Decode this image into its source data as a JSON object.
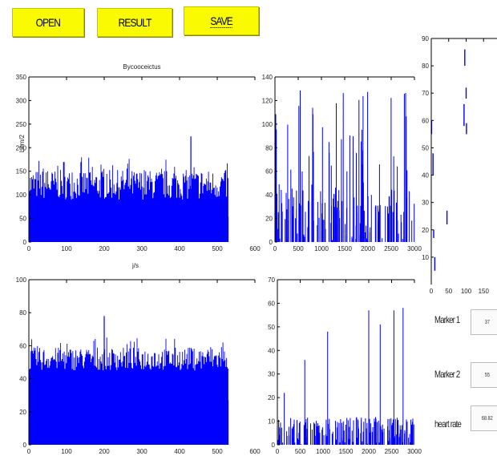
{
  "toolbar": {
    "open_label": "OPEN",
    "result_label": "RESULT",
    "save_label": "SAVE"
  },
  "fields": [
    {
      "label": "Marker 1",
      "value": "37"
    },
    {
      "label": "Marker 2",
      "value": "55"
    },
    {
      "label": "heart rate",
      "value": "68.82"
    }
  ],
  "colors": {
    "series": "#0000ff",
    "button": "#fafa00",
    "axis": "#000000"
  },
  "chart_data": [
    {
      "type": "bar",
      "title": "Bycooceictus",
      "xlim": [
        0,
        600
      ],
      "ylim": [
        0,
        350
      ],
      "xticks": [
        0,
        100,
        200,
        300,
        400,
        500,
        600
      ],
      "yticks": [
        0,
        50,
        100,
        150,
        200,
        250,
        300,
        350
      ],
      "ylabel": "Lnm/2",
      "xlabel": "j/s",
      "signal_end": 530,
      "baseline_range": [
        90,
        180
      ],
      "peak": [
        430,
        224
      ]
    },
    {
      "type": "bar",
      "xlim": [
        0,
        3000
      ],
      "ylim": [
        0,
        140
      ],
      "xticks": [
        0,
        500,
        1000,
        1500,
        2000,
        2500,
        3000
      ],
      "yticks": [
        0,
        20,
        40,
        60,
        80,
        100,
        120,
        140
      ]
    },
    {
      "type": "scatter",
      "xlim": [
        0,
        200
      ],
      "ylim": [
        0,
        90
      ],
      "xticks": [
        0,
        50,
        100,
        150
      ],
      "yticks": [
        10,
        20,
        30,
        40,
        50,
        60,
        70,
        80,
        90
      ]
    },
    {
      "type": "bar",
      "xlim": [
        0,
        600
      ],
      "ylim": [
        0,
        100
      ],
      "xticks": [
        0,
        100,
        200,
        300,
        400,
        500,
        600
      ],
      "yticks": [
        0,
        20,
        40,
        60,
        80,
        100
      ],
      "signal_end": 530,
      "baseline_range": [
        45,
        65
      ],
      "peak": [
        200,
        78
      ]
    },
    {
      "type": "bar",
      "xlim": [
        0,
        3000
      ],
      "ylim": [
        0,
        70
      ],
      "xticks": [
        0,
        500,
        1000,
        1500,
        2000,
        2500,
        3000
      ],
      "yticks": [
        0,
        10,
        20,
        30,
        40,
        50,
        60,
        70
      ],
      "spikes": [
        [
          150,
          22
        ],
        [
          600,
          36
        ],
        [
          1100,
          48
        ],
        [
          2000,
          57
        ],
        [
          2250,
          51
        ],
        [
          2550,
          57
        ],
        [
          2750,
          58
        ]
      ]
    }
  ]
}
